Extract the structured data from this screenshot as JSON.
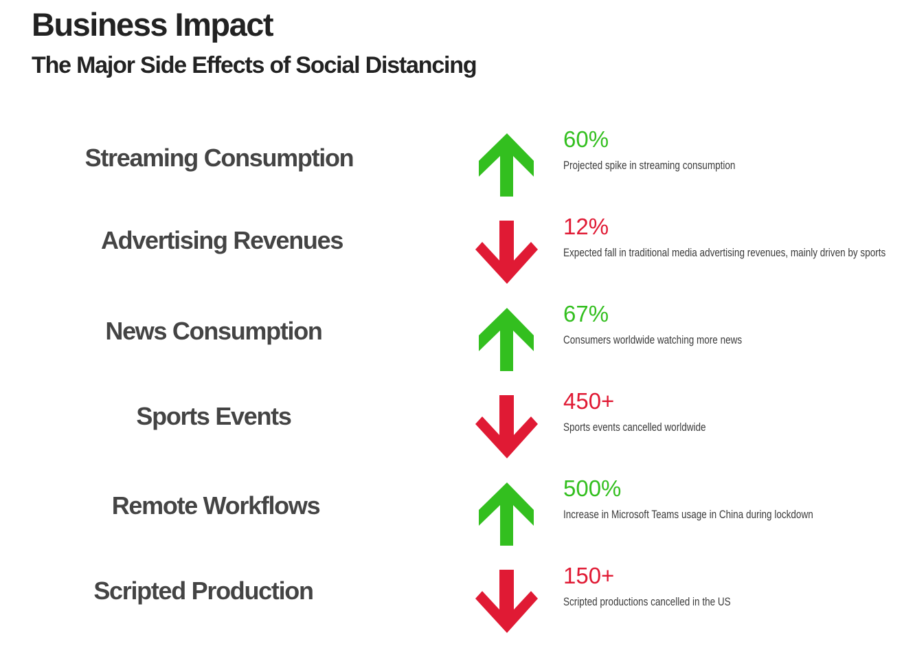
{
  "header": {
    "title": "Business Impact",
    "subtitle": "The Major Side Effects of Social Distancing"
  },
  "colors": {
    "up": "#33bf1f",
    "down": "#e01a34"
  },
  "items": [
    {
      "label": "Streaming Consumption",
      "direction": "up",
      "value": "60%",
      "description": "Projected spike in streaming consumption"
    },
    {
      "label": "Advertising Revenues",
      "direction": "down",
      "value": "12%",
      "description": "Expected fall in traditional media advertising revenues, mainly driven by sports"
    },
    {
      "label": "News Consumption",
      "direction": "up",
      "value": "67%",
      "description": "Consumers worldwide watching more news"
    },
    {
      "label": "Sports Events",
      "direction": "down",
      "value": "450+",
      "description": "Sports events cancelled worldwide"
    },
    {
      "label": "Remote Workflows",
      "direction": "up",
      "value": "500%",
      "description": "Increase in Microsoft Teams usage in China during lockdown"
    },
    {
      "label": "Scripted Production",
      "direction": "down",
      "value": "150+",
      "description": "Scripted productions cancelled in the US"
    }
  ]
}
